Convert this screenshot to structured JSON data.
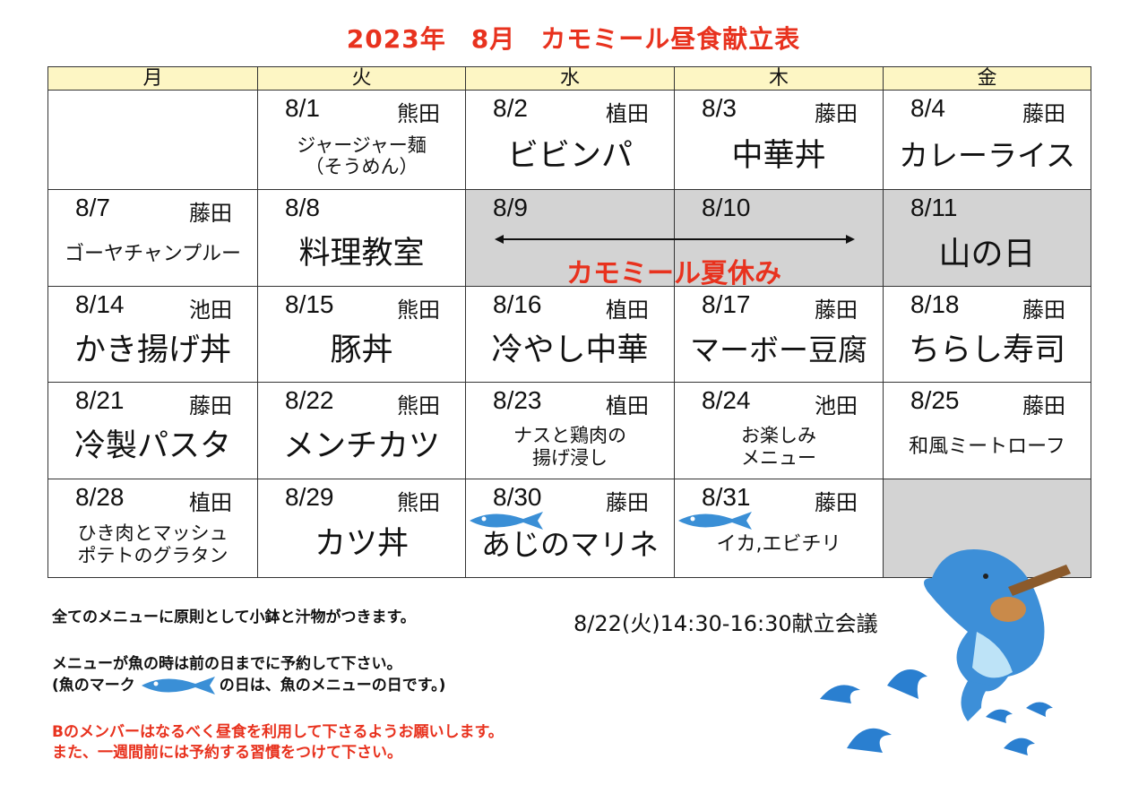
{
  "title": {
    "year": "2023年",
    "month": "8月",
    "name": "カモミール昼食献立表"
  },
  "weekdays": [
    "月",
    "火",
    "水",
    "木",
    "金"
  ],
  "weeks": [
    [
      {
        "date": "",
        "staff": "",
        "menu": []
      },
      {
        "date": "8/1",
        "staff": "熊田",
        "menu": [
          "ジャージャー麺",
          "（そうめん）"
        ]
      },
      {
        "date": "8/2",
        "staff": "植田",
        "menu": [
          "ビビンパ"
        ]
      },
      {
        "date": "8/3",
        "staff": "藤田",
        "menu": [
          "中華丼"
        ]
      },
      {
        "date": "8/4",
        "staff": "藤田",
        "menu": [
          "カレーライス"
        ]
      }
    ],
    [
      {
        "date": "8/7",
        "staff": "藤田",
        "menu": [
          "ゴーヤチャンプルー"
        ]
      },
      {
        "date": "8/8",
        "staff": "",
        "menu": [
          "料理教室"
        ]
      },
      {
        "date": "8/9",
        "staff": "",
        "menu": [],
        "gray": true
      },
      {
        "date": "8/10",
        "staff": "",
        "menu": [],
        "gray": true
      },
      {
        "date": "8/11",
        "staff": "",
        "menu": [
          "山の日"
        ],
        "gray": true
      }
    ],
    [
      {
        "date": "8/14",
        "staff": "池田",
        "menu": [
          "かき揚げ丼"
        ]
      },
      {
        "date": "8/15",
        "staff": "熊田",
        "menu": [
          "豚丼"
        ]
      },
      {
        "date": "8/16",
        "staff": "植田",
        "menu": [
          "冷やし中華"
        ]
      },
      {
        "date": "8/17",
        "staff": "藤田",
        "menu": [
          "マーボー豆腐"
        ]
      },
      {
        "date": "8/18",
        "staff": "藤田",
        "menu": [
          "ちらし寿司"
        ]
      }
    ],
    [
      {
        "date": "8/21",
        "staff": "藤田",
        "menu": [
          "冷製パスタ"
        ]
      },
      {
        "date": "8/22",
        "staff": "熊田",
        "menu": [
          "メンチカツ"
        ]
      },
      {
        "date": "8/23",
        "staff": "植田",
        "menu": [
          "ナスと鶏肉の",
          "揚げ浸し"
        ]
      },
      {
        "date": "8/24",
        "staff": "池田",
        "menu": [
          "お楽しみ",
          "メニュー"
        ]
      },
      {
        "date": "8/25",
        "staff": "藤田",
        "menu": [
          "和風ミートローフ"
        ]
      }
    ],
    [
      {
        "date": "8/28",
        "staff": "植田",
        "menu": [
          "ひき肉とマッシュ",
          "ポテトのグラタン"
        ]
      },
      {
        "date": "8/29",
        "staff": "熊田",
        "menu": [
          "カツ丼"
        ]
      },
      {
        "date": "8/30",
        "staff": "藤田",
        "menu": [
          "あじのマリネ"
        ],
        "fish": true
      },
      {
        "date": "8/31",
        "staff": "藤田",
        "menu": [
          "イカ,エビチリ"
        ],
        "fish": true
      },
      {
        "date": "",
        "staff": "",
        "menu": [],
        "gray": true
      }
    ]
  ],
  "vacation": "カモミール夏休み",
  "notes": {
    "line1": "全てのメニューに原則として小鉢と汁物がつきます。",
    "line2": "メニューが魚の時は前の日までに予約して下さい。",
    "line3a": "(魚のマーク",
    "line3b": "の日は、魚のメニューの日です。)",
    "line4": "Bのメンバーはなるべく昼食を利用して下さるようお願いします。",
    "line5": "また、一週間前には予約する習慣をつけて下さい。"
  },
  "meeting": "8/22(火)14:30-16:30献立会議",
  "colors": {
    "title": "#e8321e",
    "header": "#fdf6c4",
    "holiday": "#d3d3d3",
    "fish": "#3a8fd6"
  }
}
